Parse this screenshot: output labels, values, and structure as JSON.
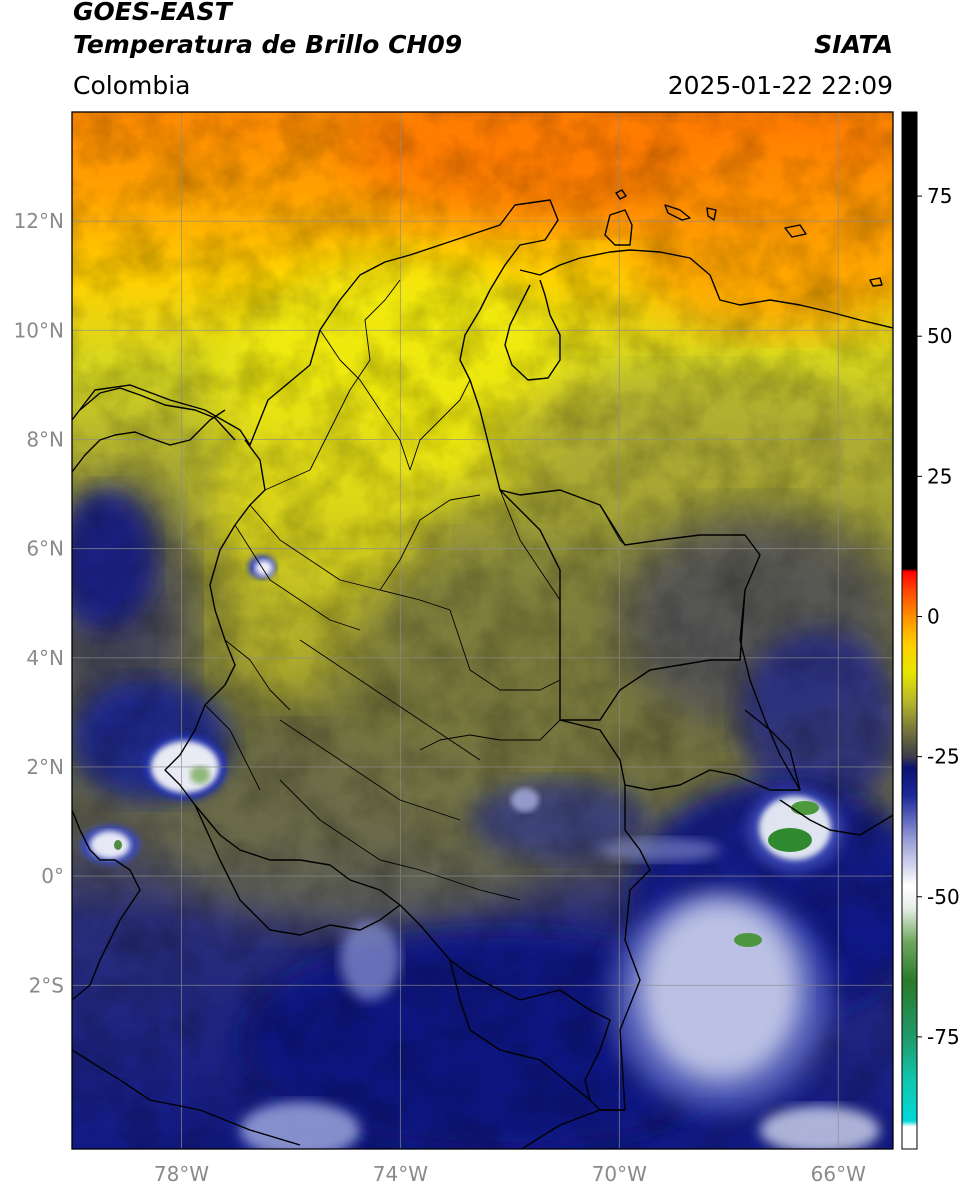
{
  "header": {
    "satellite": "GOES-EAST",
    "product": "Temperatura de Brillo CH09",
    "region": "Colombia",
    "agency": "SIATA",
    "timestamp": "2025-01-22 22:09"
  },
  "map": {
    "lon_range": [
      -80.0,
      -65.0
    ],
    "lat_range": [
      -5.0,
      14.0
    ],
    "lat_ticks": [
      {
        "value": 12,
        "label": "12°N"
      },
      {
        "value": 10,
        "label": "10°N"
      },
      {
        "value": 8,
        "label": "8°N"
      },
      {
        "value": 6,
        "label": "6°N"
      },
      {
        "value": 4,
        "label": "4°N"
      },
      {
        "value": 2,
        "label": "2°N"
      },
      {
        "value": 0,
        "label": "0°"
      },
      {
        "value": -2,
        "label": "2°S"
      }
    ],
    "lon_ticks": [
      {
        "value": -78,
        "label": "78°W"
      },
      {
        "value": -74,
        "label": "74°W"
      },
      {
        "value": -70,
        "label": "70°W"
      },
      {
        "value": -66,
        "label": "66°W"
      }
    ],
    "grid": true
  },
  "colorbar": {
    "range": [
      -95,
      90
    ],
    "ticks": [
      {
        "value": 75,
        "label": "75"
      },
      {
        "value": 50,
        "label": "50"
      },
      {
        "value": 25,
        "label": "25"
      },
      {
        "value": 0,
        "label": "0"
      },
      {
        "value": -25,
        "label": "-25"
      },
      {
        "value": -50,
        "label": "-50"
      },
      {
        "value": -75,
        "label": "-75"
      }
    ],
    "stops": [
      {
        "value": -95,
        "color": "#ffffff"
      },
      {
        "value": -91,
        "color": "#ffffff"
      },
      {
        "value": -90,
        "color": "#00d8d8"
      },
      {
        "value": -83,
        "color": "#10c8b0"
      },
      {
        "value": -75,
        "color": "#1f9a6a"
      },
      {
        "value": -65,
        "color": "#2a7a2a"
      },
      {
        "value": -58,
        "color": "#6fa860"
      },
      {
        "value": -52,
        "color": "#e8efe8"
      },
      {
        "value": -48,
        "color": "#ffffff"
      },
      {
        "value": -40,
        "color": "#9aa0d8"
      },
      {
        "value": -32,
        "color": "#1c2a9a"
      },
      {
        "value": -27,
        "color": "#0b1270"
      },
      {
        "value": -25,
        "color": "#3c3c4a"
      },
      {
        "value": -20,
        "color": "#7a7a3a"
      },
      {
        "value": -15,
        "color": "#b8b82a"
      },
      {
        "value": -10,
        "color": "#e6e600"
      },
      {
        "value": -5,
        "color": "#ffd000"
      },
      {
        "value": 0,
        "color": "#ff9000"
      },
      {
        "value": 5,
        "color": "#ff4000"
      },
      {
        "value": 8,
        "color": "#ff0000"
      },
      {
        "value": 8.5,
        "color": "#000000"
      },
      {
        "value": 90,
        "color": "#000000"
      }
    ]
  }
}
